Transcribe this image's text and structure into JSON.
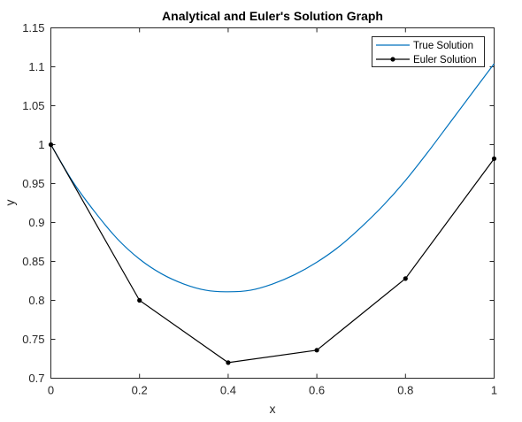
{
  "chart_data": {
    "type": "line",
    "title": "Analytical and Euler's Solution Graph",
    "xlabel": "x",
    "ylabel": "y",
    "xlim": [
      0,
      1
    ],
    "ylim": [
      0.7,
      1.15
    ],
    "x_ticks": [
      0,
      0.2,
      0.4,
      0.6,
      0.8,
      1
    ],
    "x_tick_labels": [
      "0",
      "0.2",
      "0.4",
      "0.6",
      "0.8",
      "1"
    ],
    "y_ticks": [
      0.7,
      0.75,
      0.8,
      0.85,
      0.9,
      0.95,
      1,
      1.05,
      1.1,
      1.15
    ],
    "y_tick_labels": [
      "0.7",
      "0.75",
      "0.8",
      "0.85",
      "0.9",
      "0.95",
      "1",
      "1.05",
      "1.1",
      "1.15"
    ],
    "grid": false,
    "legend_position": "top-right",
    "series": [
      {
        "name": "True Solution",
        "color": "#0072BD",
        "marker": "none",
        "x": [
          0,
          0.05,
          0.1,
          0.15,
          0.2,
          0.25,
          0.3,
          0.35,
          0.4,
          0.45,
          0.5,
          0.55,
          0.6,
          0.65,
          0.7,
          0.75,
          0.8,
          0.85,
          0.9,
          0.95,
          1
        ],
        "y": [
          1,
          0.952,
          0.913,
          0.879,
          0.853,
          0.834,
          0.821,
          0.813,
          0.811,
          0.813,
          0.821,
          0.833,
          0.849,
          0.869,
          0.894,
          0.922,
          0.954,
          0.99,
          1.028,
          1.066,
          1.104
        ]
      },
      {
        "name": "Euler Solution",
        "color": "#000000",
        "marker": "circle",
        "x": [
          0,
          0.2,
          0.4,
          0.6,
          0.8,
          1
        ],
        "y": [
          1,
          0.8,
          0.72,
          0.736,
          0.828,
          0.982
        ]
      }
    ]
  }
}
